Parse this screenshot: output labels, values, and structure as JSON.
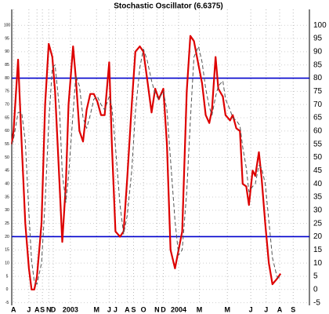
{
  "chart_data": {
    "type": "line",
    "title": "Stochastic Oscillator (6.6375)",
    "x": [
      -6.5,
      -6.3,
      -5.8,
      -5.4,
      -5.0,
      -4.6,
      -4.3,
      -4.0,
      -3.7,
      -3.2,
      -2.8,
      -2.4,
      -2.0,
      -1.7,
      -1.2,
      -0.9,
      -0.5,
      -0.2,
      0.3,
      0.6,
      1.0,
      1.4,
      1.8,
      2.2,
      2.6,
      3.0,
      3.4,
      3.8,
      4.3,
      4.6,
      5.0,
      5.5,
      5.9,
      6.3,
      6.8,
      7.2,
      7.7,
      8.1,
      8.5,
      9.0,
      9.4,
      9.8,
      10.3,
      10.7,
      11.1,
      11.6,
      12.0,
      12.4,
      12.9,
      13.3,
      13.7,
      14.2,
      14.6,
      15.0,
      15.4,
      15.7,
      16.1,
      16.4,
      16.9,
      17.2,
      17.7,
      18.0,
      18.4,
      18.8,
      19.1,
      19.5,
      19.8,
      20.2,
      20.5,
      20.9,
      21.2,
      21.6,
      22.0,
      22.4,
      22.9,
      23.3
    ],
    "series": [
      {
        "color": "#dd0000",
        "style": "solid",
        "values": [
          55,
          60,
          87,
          55,
          25,
          8,
          0,
          0,
          5,
          25,
          70,
          93,
          88,
          75,
          40,
          18,
          40,
          70,
          92,
          80,
          60,
          56,
          68,
          74,
          74,
          71,
          66,
          66,
          86,
          55,
          22,
          20,
          22,
          42,
          70,
          90,
          92,
          90,
          80,
          67,
          76,
          72,
          76,
          55,
          15,
          8,
          15,
          22,
          75,
          96,
          94,
          85,
          78,
          66,
          63,
          68,
          88,
          76,
          73,
          66,
          64,
          66,
          61,
          60,
          40,
          39,
          32,
          45,
          43,
          52,
          42,
          25,
          10,
          2,
          4,
          6
        ]
      },
      {
        "color": "#555555",
        "style": "dashed",
        "values": [
          55,
          57,
          67,
          67,
          56,
          29,
          11,
          3,
          2,
          10,
          33,
          63,
          84,
          85,
          68,
          44,
          33,
          43,
          67,
          81,
          77,
          65,
          61,
          66,
          72,
          73,
          70,
          68,
          73,
          69,
          54,
          32,
          21,
          28,
          45,
          67,
          84,
          91,
          87,
          79,
          74,
          72,
          75,
          68,
          49,
          26,
          13,
          15,
          37,
          64,
          88,
          92,
          86,
          76,
          69,
          66,
          73,
          77,
          79,
          72,
          68,
          65,
          64,
          62,
          54,
          46,
          37,
          39,
          40,
          47,
          46,
          40,
          26,
          12,
          5,
          4
        ]
      }
    ],
    "reference_lines": [
      20,
      80
    ],
    "reference_color": "#0000cc",
    "xlim": [
      -6.5,
      26.5
    ],
    "xticks": [
      {
        "value": -6.3,
        "label": "A"
      },
      {
        "value": -4.6,
        "label": "J"
      },
      {
        "value": -3.7,
        "label": "A"
      },
      {
        "value": -3.1,
        "label": "S"
      },
      {
        "value": -2.4,
        "label": "N"
      },
      {
        "value": -1.9,
        "label": "D"
      },
      {
        "value": 0,
        "label": "2003"
      },
      {
        "value": 2.9,
        "label": "M"
      },
      {
        "value": 4.3,
        "label": "J"
      },
      {
        "value": 5.0,
        "label": "J"
      },
      {
        "value": 6.3,
        "label": "A"
      },
      {
        "value": 7.0,
        "label": "S"
      },
      {
        "value": 8.1,
        "label": "O"
      },
      {
        "value": 9.6,
        "label": "N"
      },
      {
        "value": 10.3,
        "label": "D"
      },
      {
        "value": 12,
        "label": "2004"
      },
      {
        "value": 14.3,
        "label": "M"
      },
      {
        "value": 17.4,
        "label": "M"
      },
      {
        "value": 20.0,
        "label": "J"
      },
      {
        "value": 21.7,
        "label": "J"
      },
      {
        "value": 23.2,
        "label": "A"
      },
      {
        "value": 24.7,
        "label": "S"
      }
    ],
    "ylim": [
      -6,
      106
    ],
    "yticks": [
      -5,
      0,
      5,
      10,
      15,
      20,
      25,
      30,
      35,
      40,
      45,
      50,
      55,
      60,
      65,
      70,
      75,
      80,
      85,
      90,
      95,
      100
    ],
    "grid": true
  }
}
